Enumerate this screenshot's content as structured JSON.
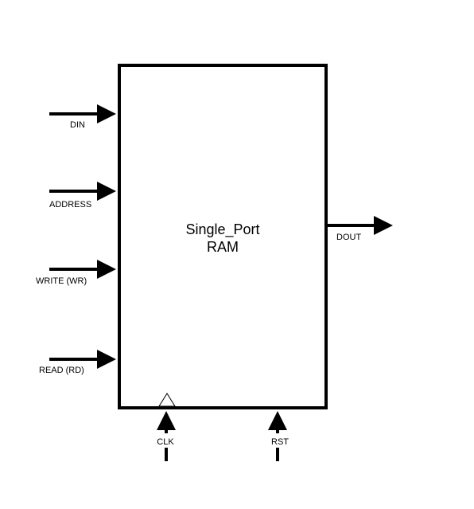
{
  "block": {
    "title_line1": "Single_Port",
    "title_line2": "RAM"
  },
  "inputs": {
    "din": "DIN",
    "address": "ADDRESS",
    "write": "WRITE (WR)",
    "read": "READ (RD)"
  },
  "outputs": {
    "dout": "DOUT"
  },
  "bottom": {
    "clk": "CLK",
    "rst": "RST"
  },
  "colors": {
    "stroke": "#000000",
    "background": "#ffffff"
  }
}
